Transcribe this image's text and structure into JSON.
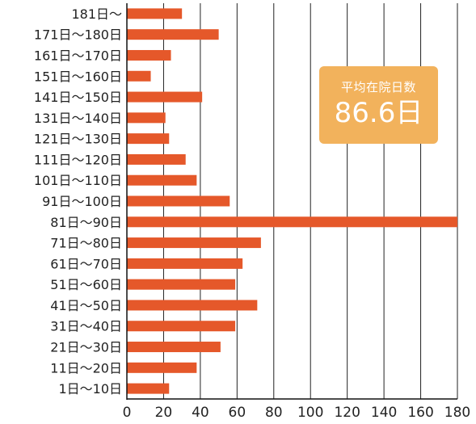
{
  "chart_data": {
    "type": "bar",
    "orientation": "horizontal",
    "categories": [
      "181日〜",
      "171日〜180日",
      "161日〜170日",
      "151日〜160日",
      "141日〜150日",
      "131日〜140日",
      "121日〜130日",
      "111日〜120日",
      "101日〜110日",
      "91日〜100日",
      "81日〜90日",
      "71日〜80日",
      "61日〜70日",
      "51日〜60日",
      "41日〜50日",
      "31日〜40日",
      "21日〜30日",
      "11日〜20日",
      "1日〜10日"
    ],
    "values": [
      30,
      50,
      24,
      13,
      41,
      21,
      23,
      32,
      38,
      56,
      180,
      73,
      63,
      59,
      71,
      59,
      51,
      38,
      23
    ],
    "xlim": [
      0,
      180
    ],
    "xticks": [
      0,
      20,
      40,
      60,
      80,
      100,
      120,
      140,
      160,
      180
    ],
    "grid": true,
    "bar_color": "#e5582a",
    "grid_color": "#222222"
  },
  "annotation": {
    "title": "平均在院日数",
    "value": "86.6日",
    "bg_color": "#f2b25c"
  }
}
